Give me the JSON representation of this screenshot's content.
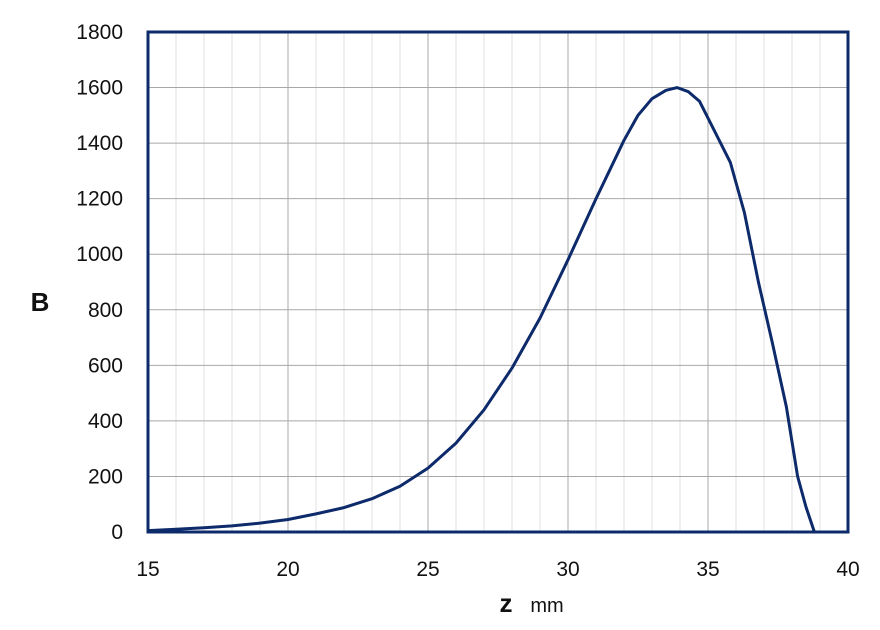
{
  "chart_data": {
    "type": "line",
    "title": "",
    "xlabel": "z",
    "xunit": "mm",
    "ylabel": "B",
    "xlim": [
      15,
      40
    ],
    "ylim": [
      0,
      1800
    ],
    "xticks": [
      15,
      20,
      25,
      30,
      35,
      40
    ],
    "yticks": [
      0,
      200,
      400,
      600,
      800,
      1000,
      1200,
      1400,
      1600,
      1800
    ],
    "x_minor_step": 1,
    "grid": true,
    "legend": "none",
    "colors": {
      "line": "#0d2a6b",
      "frame": "#0d2a6b",
      "major_grid": "#a8a8a8",
      "minor_grid": "#e2e2e2"
    },
    "series": [
      {
        "x": [
          15,
          16,
          17,
          18,
          19,
          20,
          21,
          22,
          23,
          24,
          25,
          26,
          27,
          28,
          29,
          30,
          31,
          32,
          32.5,
          33,
          33.5,
          33.9,
          34.3,
          34.7,
          35.2,
          35.8,
          36.3,
          36.8,
          37.3,
          37.8,
          38.2,
          38.5,
          38.8
        ],
        "y": [
          5,
          10,
          15,
          22,
          32,
          45,
          65,
          88,
          120,
          165,
          230,
          320,
          440,
          590,
          770,
          980,
          1200,
          1410,
          1500,
          1560,
          1590,
          1600,
          1585,
          1550,
          1450,
          1330,
          1150,
          900,
          680,
          450,
          200,
          90,
          0
        ]
      }
    ]
  }
}
